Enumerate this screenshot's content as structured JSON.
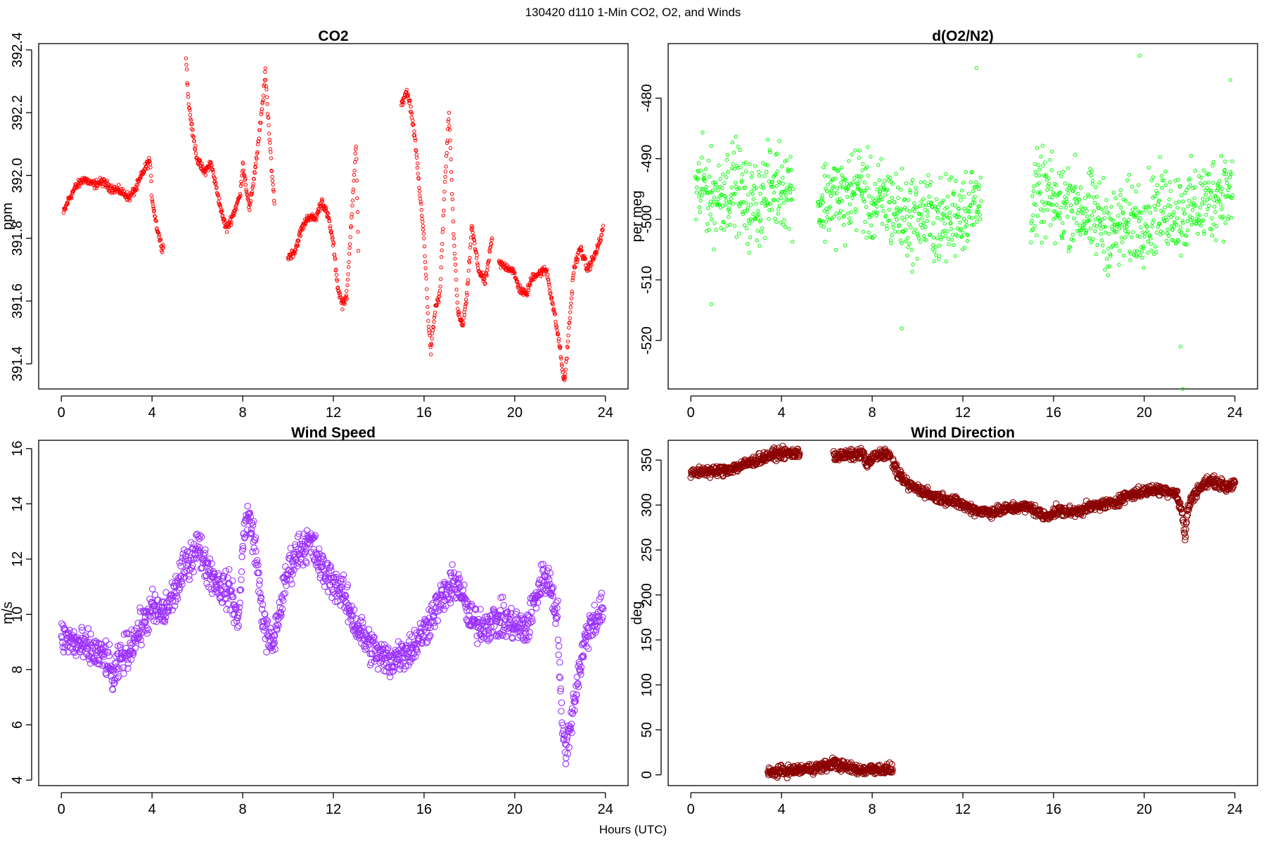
{
  "page_title": "130420   d110   1-Min CO2, O2, and Winds",
  "common_xlabel": "Hours (UTC)",
  "chart_data": [
    {
      "id": "co2",
      "type": "scatter",
      "title": "CO2",
      "xlabel": "",
      "ylabel": "ppm",
      "xlim": [
        -1,
        25
      ],
      "ylim": [
        391.32,
        392.42
      ],
      "xticks": [
        0,
        4,
        8,
        12,
        16,
        20,
        24
      ],
      "yticks": [
        391.4,
        391.6,
        391.8,
        392.0,
        392.2,
        392.4
      ],
      "ytick_labels": [
        "391.4",
        "391.6",
        "391.8",
        "392.0",
        "392.2",
        "392.4"
      ],
      "grid": false,
      "color": "#ff0000",
      "marker": "open-circle",
      "marker_size": "small",
      "series": [
        {
          "x": [
            0.1,
            0.3,
            0.6,
            1.0,
            1.4,
            1.8,
            2.2,
            2.6,
            3.0,
            3.3,
            3.6,
            3.9,
            4.0,
            4.2,
            4.4,
            4.5
          ],
          "y": [
            391.88,
            391.92,
            391.96,
            391.99,
            391.97,
            391.98,
            391.96,
            391.95,
            391.93,
            391.96,
            392.01,
            392.05,
            391.93,
            391.84,
            391.78,
            391.77
          ]
        },
        {
          "x": [
            5.5,
            5.6,
            5.8,
            6.0,
            6.3,
            6.6,
            6.9,
            7.1,
            7.3,
            7.6,
            7.9,
            8.0,
            8.3,
            8.6,
            8.9,
            9.0,
            9.1,
            9.3,
            9.4
          ],
          "y": [
            392.38,
            392.24,
            392.13,
            392.05,
            392.01,
            392.04,
            391.94,
            391.87,
            391.83,
            391.88,
            391.94,
            392.04,
            391.89,
            392.05,
            392.24,
            392.34,
            392.2,
            392.0,
            391.91
          ]
        },
        {
          "x": [
            10.0,
            10.3,
            10.6,
            10.9,
            11.2,
            11.5,
            11.8,
            12.0,
            12.2,
            12.4,
            12.6,
            12.8,
            13.0,
            13.1
          ],
          "y": [
            391.74,
            391.76,
            391.83,
            391.87,
            391.86,
            391.92,
            391.86,
            391.78,
            391.64,
            391.59,
            391.62,
            391.87,
            392.1,
            391.76
          ]
        },
        {
          "x": [
            15.0,
            15.2,
            15.4,
            15.6,
            15.8,
            16.0,
            16.2,
            16.3,
            16.5,
            16.7,
            16.9,
            17.1,
            17.3,
            17.5,
            17.7,
            17.9,
            18.1,
            18.4,
            18.7,
            19.0
          ],
          "y": [
            392.22,
            392.27,
            392.22,
            392.12,
            391.95,
            391.8,
            391.52,
            391.44,
            391.58,
            391.62,
            391.95,
            392.2,
            391.82,
            391.56,
            391.52,
            391.62,
            391.84,
            391.7,
            391.66,
            391.8
          ]
        },
        {
          "x": [
            19.3,
            19.6,
            19.9,
            20.2,
            20.5,
            20.8,
            21.1,
            21.4,
            21.7,
            22.0,
            22.1,
            22.2,
            22.4,
            22.6,
            22.9,
            23.2,
            23.5,
            23.8,
            23.9
          ],
          "y": [
            391.72,
            391.71,
            391.7,
            391.64,
            391.62,
            391.68,
            391.69,
            391.7,
            391.58,
            391.45,
            391.38,
            391.34,
            391.52,
            391.7,
            391.77,
            391.7,
            391.74,
            391.8,
            391.84
          ]
        }
      ]
    },
    {
      "id": "o2",
      "type": "scatter",
      "title": "d(O2/N2)",
      "xlabel": "",
      "ylabel": "per meg",
      "xlim": [
        -1,
        25
      ],
      "ylim": [
        -528,
        -471
      ],
      "xticks": [
        0,
        4,
        8,
        12,
        16,
        20,
        24
      ],
      "yticks": [
        -520,
        -510,
        -500,
        -490,
        -480
      ],
      "ytick_labels": [
        "-520",
        "-510",
        "-500",
        "-490",
        "-480"
      ],
      "grid": false,
      "color": "#00ff00",
      "marker": "open-circle",
      "marker_size": "small",
      "gaps": [
        [
          4.6,
          5.5
        ],
        [
          13.0,
          14.9
        ]
      ],
      "series": [
        {
          "x": [
            0.2,
            0.6,
            1.0,
            1.5,
            2.0,
            2.5,
            3.0,
            3.5,
            4.0,
            4.5
          ],
          "y": [
            -496,
            -494,
            -497,
            -495,
            -494,
            -498,
            -497,
            -495,
            -494,
            -495
          ]
        },
        {
          "x": [
            5.6,
            6.2,
            6.8,
            7.4,
            8.0,
            8.6,
            9.2,
            9.8,
            10.4,
            11.0,
            11.6,
            12.2,
            12.8
          ],
          "y": [
            -498,
            -496,
            -497,
            -494,
            -498,
            -497,
            -499,
            -500,
            -499,
            -501,
            -499,
            -498,
            -497
          ]
        },
        {
          "x": [
            15.0,
            15.6,
            16.2,
            16.8,
            17.4,
            18.0,
            18.6,
            19.2,
            19.8,
            20.4,
            21.0,
            21.6,
            22.2,
            22.8,
            23.4,
            23.9
          ],
          "y": [
            -497,
            -496,
            -498,
            -497,
            -499,
            -500,
            -502,
            -501,
            -500,
            -499,
            -498,
            -499,
            -498,
            -497,
            -495,
            -496
          ]
        }
      ],
      "spread": 6,
      "outliers": [
        {
          "x": 19.8,
          "y": -473
        },
        {
          "x": 12.6,
          "y": -475
        },
        {
          "x": 21.6,
          "y": -521
        },
        {
          "x": 21.7,
          "y": -528
        },
        {
          "x": 9.3,
          "y": -518
        },
        {
          "x": 0.9,
          "y": -514
        },
        {
          "x": 23.8,
          "y": -477
        }
      ]
    },
    {
      "id": "wind_speed",
      "type": "scatter",
      "title": "Wind Speed",
      "xlabel": "",
      "ylabel": "m/s",
      "xlim": [
        -1,
        25
      ],
      "ylim": [
        3.8,
        16.3
      ],
      "xticks": [
        0,
        4,
        8,
        12,
        16,
        20,
        24
      ],
      "yticks": [
        4,
        6,
        8,
        10,
        12,
        14,
        16
      ],
      "ytick_labels": [
        "4",
        "6",
        "8",
        "10",
        "12",
        "14",
        "16"
      ],
      "grid": false,
      "color": "#9b30ff",
      "marker": "open-circle",
      "marker_size": "large",
      "series": [
        {
          "x": [
            0.0,
            0.5,
            1.0,
            1.5,
            2.0,
            2.3,
            2.6,
            3.0,
            3.5,
            4.0,
            4.5,
            5.0,
            5.5,
            6.0,
            6.5,
            7.0,
            7.5,
            7.8,
            8.0,
            8.2,
            8.5,
            8.8,
            9.0,
            9.3,
            9.6,
            10.0,
            10.5,
            11.0,
            11.5,
            12.0,
            12.5,
            13.0,
            13.5,
            14.0,
            14.5,
            15.0,
            15.5,
            16.0,
            16.5,
            17.0,
            17.5,
            18.0,
            18.5,
            19.0,
            19.5,
            20.0,
            20.5,
            21.0,
            21.3,
            21.6,
            21.9,
            22.1,
            22.3,
            22.6,
            22.9,
            23.2,
            23.5,
            23.9
          ],
          "y": [
            9.2,
            9.0,
            8.8,
            8.6,
            8.4,
            7.6,
            8.4,
            8.8,
            9.5,
            10.2,
            10.0,
            10.8,
            11.8,
            12.5,
            11.6,
            11.0,
            10.8,
            9.6,
            12.5,
            13.6,
            12.8,
            10.5,
            9.4,
            8.8,
            10.0,
            11.6,
            12.4,
            12.6,
            11.6,
            11.2,
            10.6,
            9.6,
            9.0,
            8.5,
            8.3,
            8.6,
            8.8,
            9.4,
            10.2,
            10.8,
            11.2,
            9.8,
            9.6,
            9.7,
            9.8,
            9.6,
            9.4,
            10.8,
            11.4,
            11.0,
            9.8,
            5.6,
            5.2,
            6.8,
            8.2,
            9.4,
            9.8,
            10.2
          ]
        }
      ],
      "spread": 0.55
    },
    {
      "id": "wind_direction",
      "type": "scatter",
      "title": "Wind Direction",
      "xlabel": "",
      "ylabel": "deg",
      "xlim": [
        -1,
        25
      ],
      "ylim": [
        -12,
        372
      ],
      "xticks": [
        0,
        4,
        8,
        12,
        16,
        20,
        24
      ],
      "yticks": [
        0,
        50,
        100,
        150,
        200,
        250,
        300,
        350
      ],
      "ytick_labels": [
        "0",
        "50",
        "100",
        "150",
        "200",
        "250",
        "300",
        "350"
      ],
      "grid": false,
      "color": "#8b0000",
      "marker": "open-circle",
      "marker_size": "large",
      "series": [
        {
          "x": [
            0.0,
            0.5,
            1.0,
            1.5,
            2.0,
            2.5,
            3.0,
            3.5,
            4.0,
            4.3,
            4.6,
            4.8
          ],
          "y": [
            334,
            338,
            337,
            339,
            342,
            346,
            351,
            355,
            358,
            357,
            358,
            357
          ]
        },
        {
          "x": [
            6.3,
            6.4,
            7.6,
            7.8,
            8.0,
            8.3,
            8.6,
            8.8
          ],
          "y": [
            358,
            354,
            357,
            344,
            352,
            356,
            358,
            354
          ]
        },
        {
          "x": [
            3.4,
            4.0,
            4.5,
            5.0,
            5.5,
            6.0,
            6.3,
            6.6,
            7.0,
            7.5,
            8.0,
            8.5,
            8.9
          ],
          "y": [
            2,
            4,
            5,
            6,
            8,
            10,
            14,
            10,
            8,
            5,
            7,
            6,
            6
          ]
        },
        {
          "x": [
            8.9,
            9.2,
            9.6,
            10.2,
            10.8,
            11.4,
            12.0,
            12.6,
            13.2,
            13.8,
            14.4,
            15.0,
            15.6,
            16.2,
            16.8,
            17.4,
            18.0,
            18.6,
            19.2,
            19.8,
            20.4,
            21.0,
            21.4,
            21.7,
            21.8,
            21.9,
            22.1,
            22.4,
            22.8,
            23.2,
            23.6,
            24.0
          ],
          "y": [
            348,
            332,
            322,
            316,
            309,
            306,
            300,
            294,
            292,
            295,
            298,
            297,
            287,
            294,
            292,
            296,
            300,
            302,
            310,
            314,
            317,
            316,
            314,
            288,
            262,
            292,
            308,
            318,
            326,
            326,
            320,
            325
          ]
        }
      ],
      "spread": 5
    }
  ]
}
